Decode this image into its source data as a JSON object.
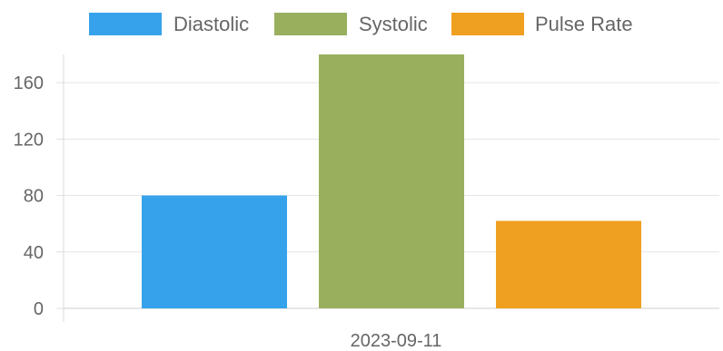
{
  "chart_data": {
    "type": "bar",
    "categories": [
      "2023-09-11"
    ],
    "series": [
      {
        "name": "Diastolic",
        "values": [
          80
        ],
        "color": "#36a2eb"
      },
      {
        "name": "Systolic",
        "values": [
          180
        ],
        "color": "#9aaf5e"
      },
      {
        "name": "Pulse Rate",
        "values": [
          62
        ],
        "color": "#f0a020"
      }
    ],
    "title": "",
    "xlabel": "",
    "ylabel": "",
    "ylim": [
      0,
      180
    ],
    "yticks": [
      0,
      40,
      80,
      120,
      160
    ],
    "grid": true,
    "legend_position": "top"
  }
}
